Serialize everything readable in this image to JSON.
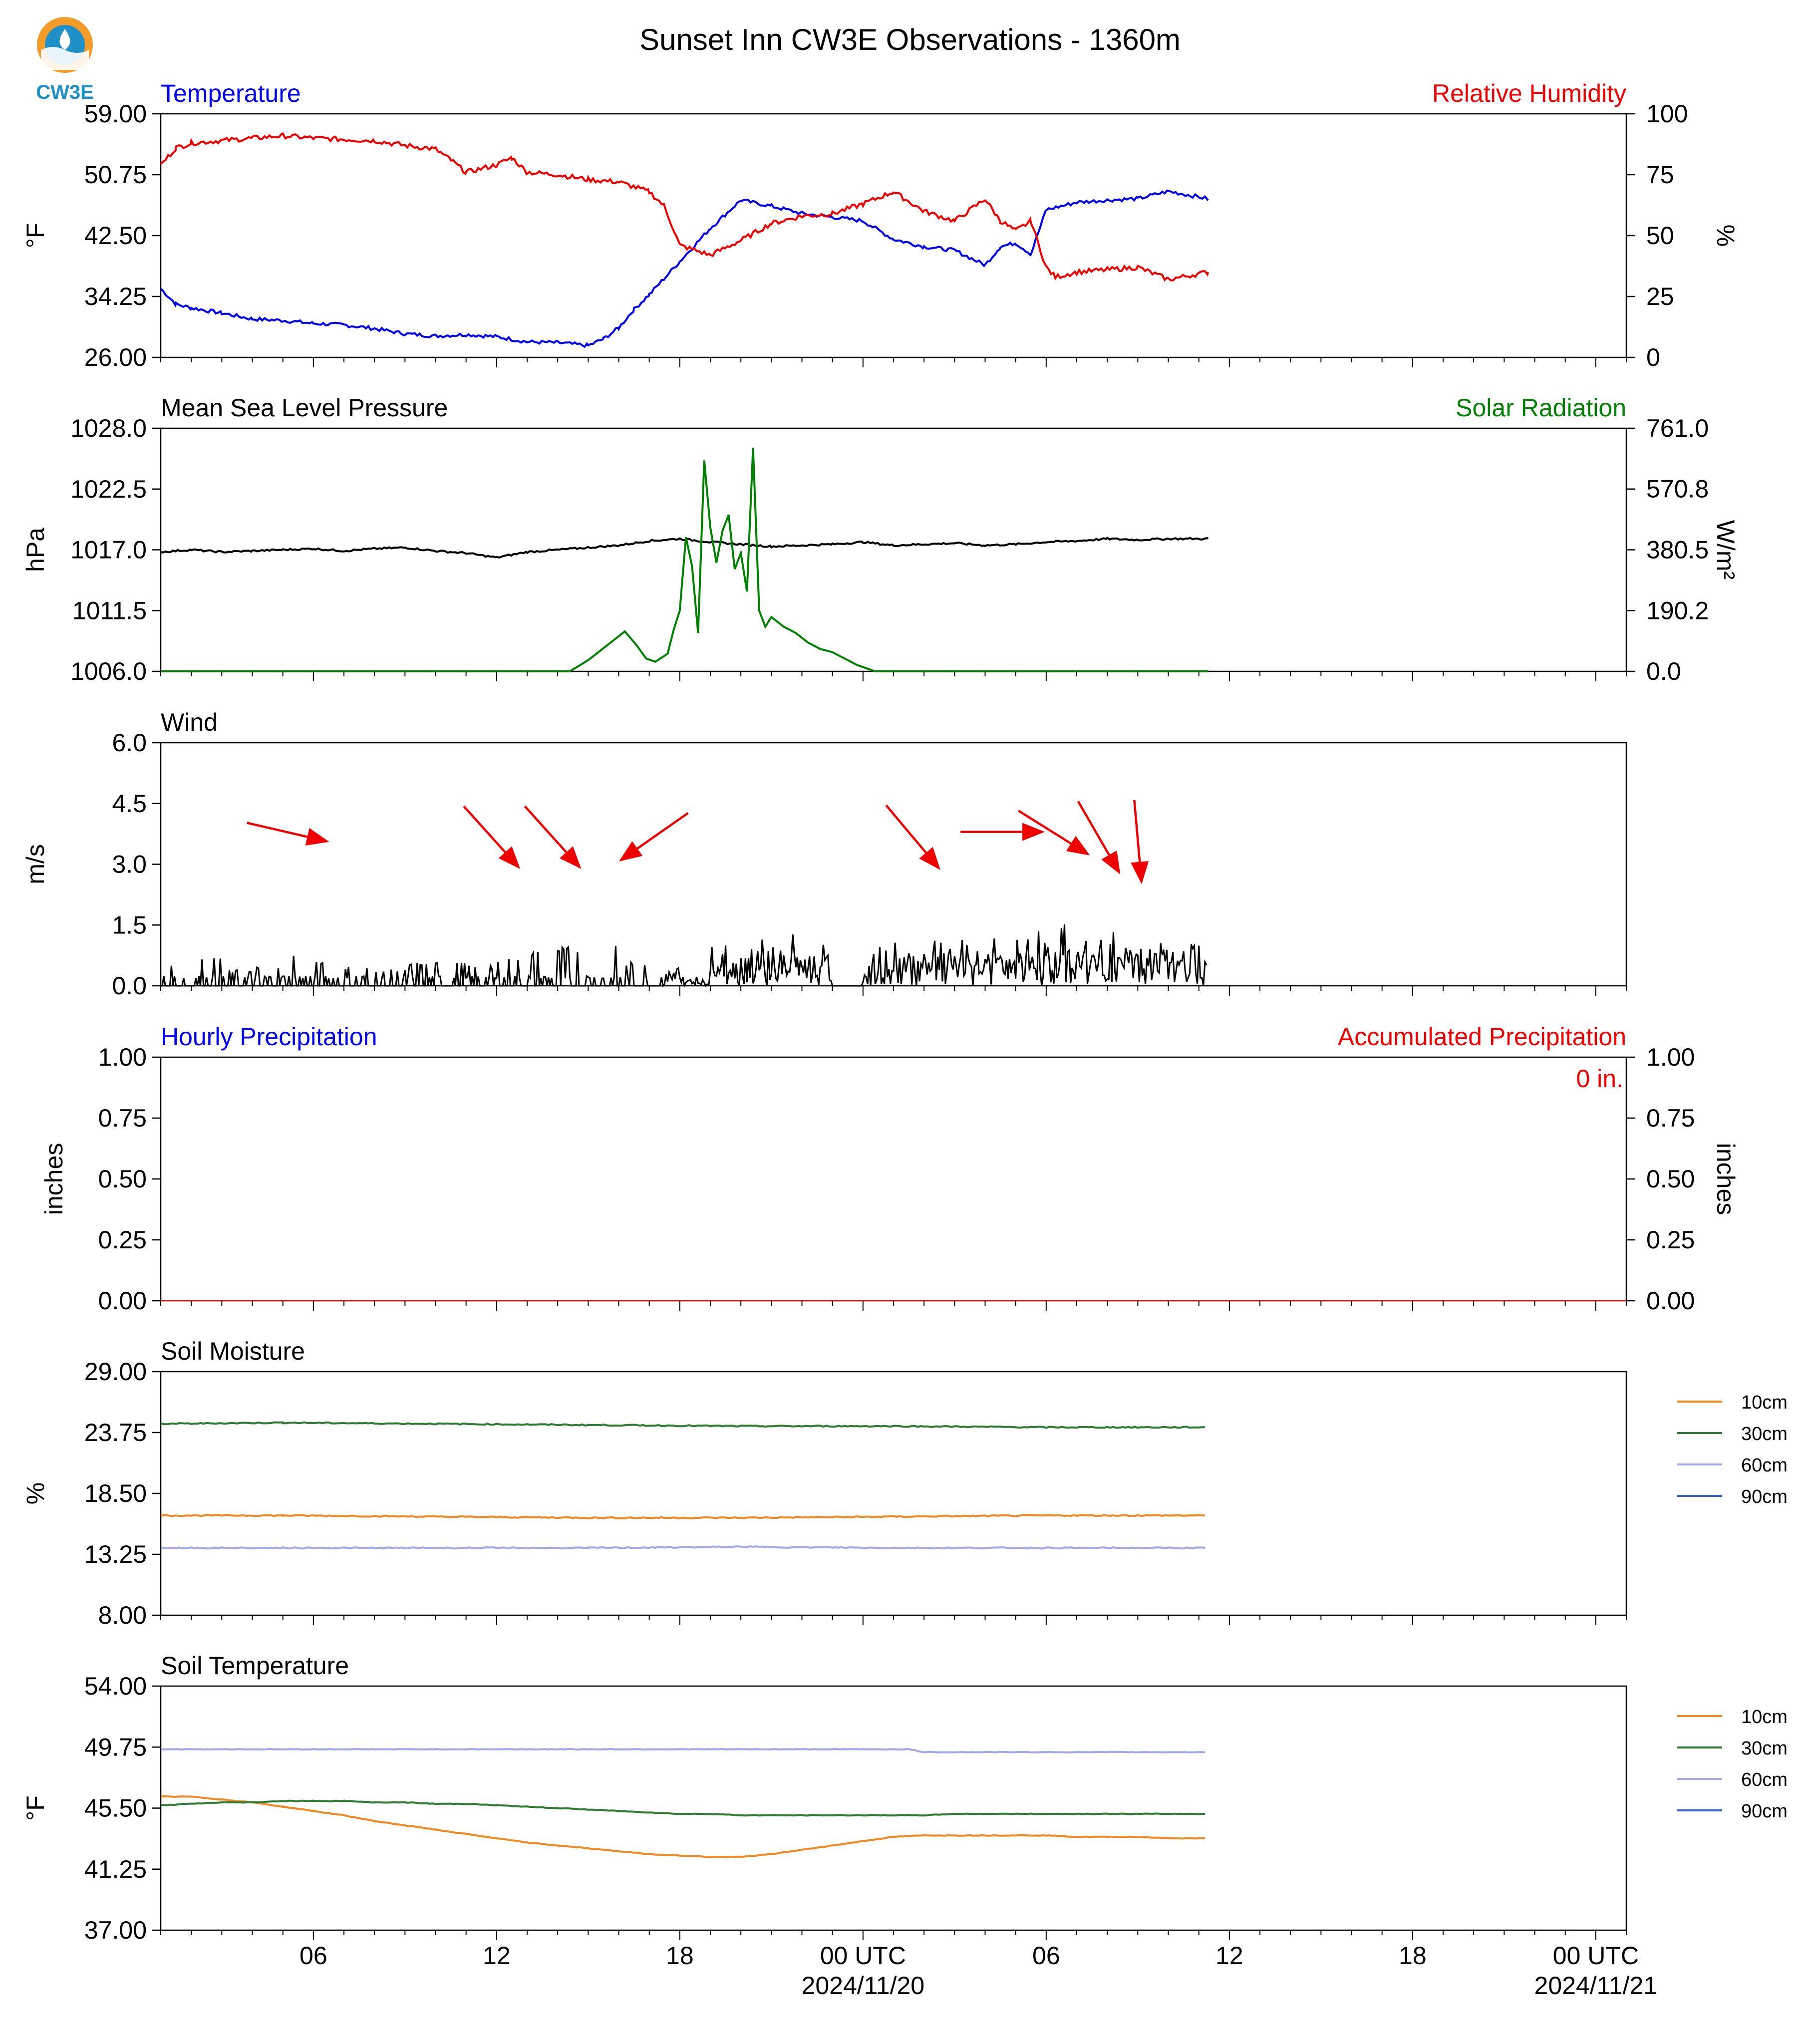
{
  "title": "Sunset Inn CW3E Observations - 1360m",
  "logo": {
    "text": "CW3E",
    "colors": [
      "#f39c2b",
      "#1f8fc8"
    ]
  },
  "x_axis": {
    "ticks": [
      {
        "label": "06",
        "hours": 6
      },
      {
        "label": "12",
        "hours": 12
      },
      {
        "label": "18",
        "hours": 18
      },
      {
        "label": "00 UTC",
        "sub": "2024/11/20",
        "hours": 24
      },
      {
        "label": "06",
        "hours": 30
      },
      {
        "label": "12",
        "hours": 36
      },
      {
        "label": "18",
        "hours": 42
      },
      {
        "label": "00 UTC",
        "sub": "2024/11/21",
        "hours": 48
      }
    ],
    "range_hours": [
      1,
      49
    ],
    "data_end_hours": 35.3
  },
  "chart_data": [
    {
      "type": "line",
      "panel": "temperature-rh",
      "left_title": "Temperature",
      "right_title": "Relative Humidity",
      "ylabel": "°F",
      "ylabel_right": "%",
      "ylim": [
        26,
        59
      ],
      "ylim_right": [
        0,
        100
      ],
      "yticks": [
        "26.00",
        "34.25",
        "42.50",
        "50.75",
        "59.00"
      ],
      "yticks_right": [
        "0",
        "25",
        "50",
        "75",
        "100"
      ],
      "colors": {
        "left": "#0000ee",
        "right": "#ee0000"
      },
      "series": [
        {
          "name": "Temperature",
          "axis": "left",
          "x": [
            1,
            1.5,
            2,
            3,
            4,
            5,
            6,
            7,
            8,
            9,
            10,
            11,
            12,
            13,
            14,
            15,
            15.5,
            16,
            16.5,
            17,
            18,
            19,
            20,
            21,
            22,
            23,
            24,
            25,
            26,
            27,
            28,
            28.5,
            29,
            29.5,
            30,
            31,
            32,
            33,
            34,
            35.3
          ],
          "y": [
            35.3,
            33.2,
            32.7,
            32.0,
            31.2,
            31.0,
            30.6,
            30.4,
            29.9,
            29.2,
            28.9,
            29.1,
            28.8,
            28.1,
            28.0,
            27.6,
            28.5,
            30.0,
            32.5,
            34.5,
            39.0,
            43.5,
            47.3,
            46.5,
            45.5,
            45.0,
            44.5,
            42.0,
            41.0,
            40.5,
            38.5,
            41.0,
            41.5,
            40.0,
            46.0,
            47.0,
            47.3,
            47.5,
            48.5,
            47.5
          ]
        },
        {
          "name": "Relative Humidity",
          "axis": "right",
          "x": [
            1,
            1.5,
            2,
            3,
            4,
            5,
            6,
            7,
            8,
            9,
            10,
            10.5,
            11,
            12,
            12.5,
            13,
            14,
            15,
            16,
            17,
            17.5,
            18,
            19,
            20,
            21,
            22,
            23,
            24,
            25,
            26,
            27,
            28,
            28.5,
            29,
            29.5,
            30,
            30.3,
            31,
            32,
            33,
            34,
            35.3
          ],
          "y": [
            79,
            86,
            88,
            89,
            90,
            91,
            90,
            89.5,
            89,
            87,
            85.5,
            81,
            76,
            79,
            82,
            76,
            75,
            73,
            72,
            68,
            62,
            46,
            42,
            48,
            55,
            58,
            59,
            63,
            68,
            60,
            56,
            65,
            56,
            52,
            56,
            37,
            33,
            35,
            36,
            37,
            32,
            35
          ]
        }
      ]
    },
    {
      "type": "line",
      "panel": "pressure-solar",
      "left_title": "Mean Sea Level Pressure",
      "right_title": "Solar Radiation",
      "ylabel": "hPa",
      "ylabel_right": "W/m²",
      "ylim": [
        1006,
        1028
      ],
      "ylim_right": [
        0,
        761
      ],
      "yticks": [
        "1006.0",
        "1011.5",
        "1017.0",
        "1022.5",
        "1028.0"
      ],
      "yticks_right": [
        "0.0",
        "190.2",
        "380.5",
        "570.8",
        "761.0"
      ],
      "colors": {
        "left": "#000000",
        "right": "#008000"
      },
      "series": [
        {
          "name": "Mean Sea Level Pressure",
          "axis": "left",
          "x": [
            1,
            2,
            3,
            4,
            5,
            6,
            7,
            8,
            9,
            10,
            11,
            12,
            13,
            14,
            15,
            16,
            17,
            18,
            19,
            20,
            21,
            22,
            23,
            24,
            25,
            26,
            27,
            28,
            29,
            30,
            31,
            32,
            33,
            34,
            35.3
          ],
          "y": [
            1016.8,
            1017.0,
            1016.8,
            1016.9,
            1017.0,
            1017.1,
            1016.9,
            1017.1,
            1017.2,
            1016.9,
            1016.7,
            1016.3,
            1016.8,
            1017.0,
            1017.2,
            1017.4,
            1017.8,
            1018.0,
            1017.7,
            1017.5,
            1017.3,
            1017.4,
            1017.5,
            1017.7,
            1017.4,
            1017.5,
            1017.6,
            1017.4,
            1017.5,
            1017.7,
            1017.8,
            1018.0,
            1017.9,
            1018.0,
            1018.0
          ]
        },
        {
          "name": "Solar Radiation",
          "axis": "right",
          "x": [
            1,
            14.4,
            15,
            15.8,
            16.2,
            16.6,
            16.9,
            17.2,
            17.6,
            17.8,
            18.0,
            18.2,
            18.4,
            18.6,
            18.8,
            19.0,
            19.2,
            19.4,
            19.6,
            19.8,
            20.0,
            20.2,
            20.4,
            20.6,
            20.8,
            21.0,
            21.4,
            21.8,
            22.2,
            22.6,
            23.0,
            23.4,
            23.8,
            24.4,
            25,
            35.3
          ],
          "y": [
            0,
            0,
            35,
            95,
            125,
            80,
            40,
            30,
            55,
            130,
            190,
            420,
            330,
            120,
            660,
            450,
            340,
            440,
            490,
            320,
            370,
            250,
            700,
            190,
            140,
            170,
            140,
            120,
            90,
            70,
            60,
            40,
            20,
            0,
            0,
            0
          ]
        }
      ]
    },
    {
      "type": "line",
      "panel": "wind",
      "left_title": "Wind",
      "ylabel": "m/s",
      "ylim": [
        0,
        6
      ],
      "yticks": [
        "0.0",
        "1.5",
        "3.0",
        "4.5",
        "6.0"
      ],
      "colors": {
        "speed": "#000000",
        "barbs": "#ee0000"
      },
      "series": [
        {
          "name": "Wind speed",
          "x": [
            1,
            35.3
          ],
          "y": [
            0,
            0
          ],
          "max_envelope": [
            0.5,
            0.7,
            0.4,
            0.5,
            0.9,
            0.6,
            0.5,
            0.4,
            0.6,
            0.6,
            0.5,
            0.7,
            0.9,
            1.0,
            1.0,
            0.6,
            0.6,
            0.3,
            1.4,
            1.5,
            1.4,
            1.2,
            0.0,
            1.0,
            1.2,
            1.3,
            1.4,
            1.5,
            1.6,
            1.6,
            1.6,
            1.5,
            1.5,
            1.4
          ]
        },
        {
          "name": "Wind direction",
          "x": [
            5.1,
            11.8,
            13.8,
            17.2,
            25.6,
            28.5,
            30.2,
            31.7,
            33.0
          ],
          "y": [
            3.8,
            3.7,
            3.7,
            3.7,
            3.7,
            3.8,
            3.8,
            3.7,
            3.6
          ],
          "direction_deg": [
            283,
            318,
            318,
            55,
            320,
            270,
            302,
            330,
            355
          ]
        }
      ]
    },
    {
      "type": "line",
      "panel": "precipitation",
      "left_title": "Hourly Precipitation",
      "right_title": "Accumulated Precipitation",
      "ylabel": "inches",
      "ylabel_right": "inches",
      "ylim": [
        0,
        1
      ],
      "ylim_right": [
        0,
        1
      ],
      "yticks": [
        "0.00",
        "0.25",
        "0.50",
        "0.75",
        "1.00"
      ],
      "yticks_right": [
        "0.00",
        "0.25",
        "0.50",
        "0.75",
        "1.00"
      ],
      "annotation": "0 in.",
      "colors": {
        "left": "#0000ee",
        "right": "#ee0000"
      },
      "series": [
        {
          "name": "Hourly Precipitation",
          "x": [
            1,
            35.3
          ],
          "y": [
            0,
            0
          ]
        },
        {
          "name": "Accumulated Precipitation",
          "x": [
            1,
            35.3
          ],
          "y": [
            0,
            0
          ]
        }
      ]
    },
    {
      "type": "line",
      "panel": "soil-moisture",
      "left_title": "Soil Moisture",
      "ylabel": "%",
      "ylim": [
        8,
        29
      ],
      "yticks": [
        "8.00",
        "13.25",
        "18.50",
        "23.75",
        "29.00"
      ],
      "legend": [
        "10cm",
        "30cm",
        "60cm",
        "90cm"
      ],
      "legend_colors": [
        "#f08a24",
        "#2e7d32",
        "#a3a8e6",
        "#2a5fdc"
      ],
      "series": [
        {
          "name": "10cm",
          "x": [
            1,
            5,
            10,
            15,
            20,
            25,
            30,
            35.2
          ],
          "y": [
            16.6,
            16.6,
            16.5,
            16.4,
            16.4,
            16.5,
            16.6,
            16.6
          ]
        },
        {
          "name": "30cm",
          "x": [
            1,
            5,
            10,
            15,
            20,
            25,
            30,
            35.2
          ],
          "y": [
            24.5,
            24.6,
            24.5,
            24.4,
            24.3,
            24.3,
            24.2,
            24.2
          ]
        },
        {
          "name": "60cm",
          "x": [
            1,
            5,
            10,
            15,
            20,
            25,
            30,
            35.2
          ],
          "y": [
            13.8,
            13.8,
            13.8,
            13.8,
            13.9,
            13.8,
            13.8,
            13.8
          ]
        }
      ]
    },
    {
      "type": "line",
      "panel": "soil-temperature",
      "left_title": "Soil Temperature",
      "ylabel": "°F",
      "ylim": [
        37,
        54
      ],
      "yticks": [
        "37.00",
        "41.25",
        "45.50",
        "49.75",
        "54.00"
      ],
      "legend": [
        "10cm",
        "30cm",
        "60cm",
        "90cm"
      ],
      "legend_colors": [
        "#f08a24",
        "#2e7d32",
        "#a3a8e6",
        "#2a5fdc"
      ],
      "series": [
        {
          "name": "10cm",
          "x": [
            1,
            2,
            3,
            4,
            5,
            6,
            7,
            8,
            9,
            10,
            11,
            12,
            13,
            14,
            15,
            16,
            17,
            18,
            19,
            20,
            21,
            22,
            23,
            24,
            25,
            26,
            27,
            28,
            29,
            30,
            31,
            32,
            33,
            34,
            35.2
          ],
          "y": [
            46.3,
            46.3,
            46.1,
            45.9,
            45.6,
            45.3,
            45.0,
            44.6,
            44.3,
            44.0,
            43.7,
            43.4,
            43.1,
            42.9,
            42.7,
            42.5,
            42.3,
            42.2,
            42.1,
            42.1,
            42.3,
            42.6,
            42.9,
            43.2,
            43.5,
            43.6,
            43.6,
            43.6,
            43.6,
            43.6,
            43.5,
            43.5,
            43.5,
            43.4,
            43.4
          ]
        },
        {
          "name": "30cm",
          "x": [
            1,
            2,
            3,
            4,
            5,
            6,
            7,
            8,
            9,
            10,
            11,
            12,
            13,
            14,
            15,
            16,
            17,
            18,
            19,
            20,
            21,
            22,
            23,
            24,
            25,
            26,
            27,
            28,
            29,
            30,
            31,
            32,
            33,
            34,
            35.2
          ],
          "y": [
            45.7,
            45.8,
            45.9,
            45.9,
            46.0,
            46.0,
            46.0,
            45.9,
            45.9,
            45.8,
            45.8,
            45.7,
            45.6,
            45.5,
            45.4,
            45.3,
            45.2,
            45.1,
            45.1,
            45.0,
            45.0,
            45.0,
            45.0,
            45.0,
            45.0,
            45.0,
            45.1,
            45.1,
            45.1,
            45.1,
            45.1,
            45.1,
            45.1,
            45.1,
            45.1
          ]
        },
        {
          "name": "60cm",
          "x": [
            1,
            10,
            20,
            25.5,
            26,
            30,
            35.2
          ],
          "y": [
            49.6,
            49.6,
            49.6,
            49.6,
            49.4,
            49.4,
            49.4
          ]
        }
      ]
    }
  ]
}
